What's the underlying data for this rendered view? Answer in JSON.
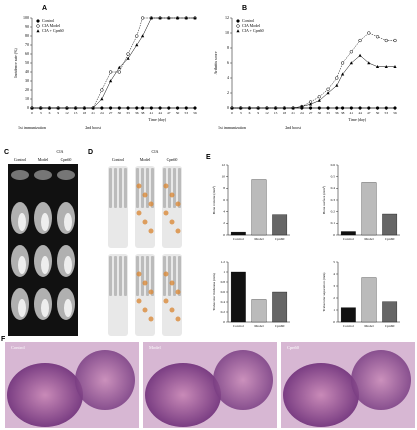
{
  "chart_data": [
    {
      "type": "line",
      "label": "A",
      "ylabel": "Incidence rate (%)",
      "xlabel": "Time (day)",
      "annotations": [
        "1st immunization",
        "2nd boost"
      ],
      "x": [
        0,
        3,
        6,
        9,
        12,
        15,
        18,
        21,
        24,
        27,
        30,
        33,
        36,
        38,
        41,
        44,
        47,
        50,
        53,
        56
      ],
      "xlim": [
        0,
        56
      ],
      "ylim": [
        0,
        100
      ],
      "yticks": [
        0,
        10,
        20,
        30,
        40,
        50,
        60,
        70,
        80,
        90,
        100
      ],
      "series": [
        {
          "name": "Control",
          "color": "#000000",
          "marker": "filled-circle",
          "values": [
            0,
            0,
            0,
            0,
            0,
            0,
            0,
            0,
            0,
            0,
            0,
            0,
            0,
            0,
            0,
            0,
            0,
            0,
            0,
            0
          ]
        },
        {
          "name": "CIA Model",
          "color": "#000000",
          "marker": "open-circle",
          "values": [
            0,
            0,
            0,
            0,
            0,
            0,
            0,
            0,
            20,
            40,
            40,
            60,
            80,
            100,
            100,
            100,
            100,
            100,
            100,
            100
          ]
        },
        {
          "name": "CIA + Cpn60",
          "color": "#000000",
          "marker": "triangle",
          "values": [
            0,
            0,
            0,
            0,
            0,
            0,
            0,
            0,
            10,
            30,
            45,
            55,
            70,
            80,
            100,
            100,
            100,
            100,
            100,
            100
          ]
        }
      ]
    },
    {
      "type": "line",
      "label": "B",
      "ylabel": "Arthritis score",
      "xlabel": "Time (day)",
      "annotations": [
        "1st immunization",
        "2nd boost"
      ],
      "x": [
        0,
        3,
        6,
        9,
        12,
        15,
        18,
        21,
        24,
        27,
        30,
        33,
        36,
        38,
        41,
        44,
        47,
        50,
        53,
        56
      ],
      "xlim": [
        0,
        56
      ],
      "ylim": [
        0,
        12
      ],
      "yticks": [
        0,
        2,
        4,
        6,
        8,
        10,
        12
      ],
      "series": [
        {
          "name": "Control",
          "color": "#000000",
          "marker": "filled-circle",
          "values": [
            0,
            0,
            0,
            0,
            0,
            0,
            0,
            0,
            0,
            0,
            0,
            0,
            0,
            0,
            0,
            0,
            0,
            0,
            0,
            0
          ]
        },
        {
          "name": "CIA Model",
          "color": "#000000",
          "marker": "open-circle",
          "values": [
            0,
            0,
            0,
            0,
            0,
            0,
            0,
            0,
            0.2,
            0.8,
            1.5,
            2.5,
            4,
            6,
            7.5,
            9,
            10,
            9.5,
            9,
            9
          ]
        },
        {
          "name": "CIA + Cpn60",
          "color": "#000000",
          "marker": "triangle",
          "values": [
            0,
            0,
            0,
            0,
            0,
            0,
            0,
            0,
            0.2,
            0.5,
            1,
            2,
            3,
            4.5,
            6,
            7,
            6,
            5.5,
            5.5,
            5.5
          ]
        }
      ]
    },
    {
      "type": "bar",
      "label": "E",
      "ylabel": "Bone volume (mm³)",
      "categories": [
        "Control",
        "Model",
        "Cpn60"
      ],
      "values": [
        0.5,
        9.5,
        3.5
      ],
      "colors": [
        "#111111",
        "#bbbbbb",
        "#666666"
      ],
      "ylim": [
        0,
        12
      ],
      "yticks": [
        0,
        2,
        4,
        6,
        8,
        10,
        12
      ]
    },
    {
      "type": "bar",
      "ylabel": "Bone surface (mm²)",
      "categories": [
        "Control",
        "Model",
        "Cpn60"
      ],
      "values": [
        0.03,
        0.45,
        0.18
      ],
      "colors": [
        "#111111",
        "#bbbbbb",
        "#666666"
      ],
      "ylim": [
        0,
        0.6
      ],
      "yticks": [
        0,
        0.1,
        0.2,
        0.3,
        0.4,
        0.5,
        0.6
      ]
    },
    {
      "type": "bar",
      "ylabel": "Trabecular thickness (mm)",
      "categories": [
        "Control",
        "Model",
        "Cpn60"
      ],
      "values": [
        1.0,
        0.45,
        0.6
      ],
      "colors": [
        "#111111",
        "#bbbbbb",
        "#666666"
      ],
      "ylim": [
        0,
        1.2
      ],
      "yticks": [
        0,
        0.2,
        0.4,
        0.6,
        0.8,
        1,
        1.2
      ]
    },
    {
      "type": "bar",
      "ylabel": "Trabecular separation (mm)",
      "categories": [
        "Control",
        "Model",
        "Cpn60"
      ],
      "values": [
        1.2,
        3.7,
        1.7
      ],
      "colors": [
        "#111111",
        "#bbbbbb",
        "#666666"
      ],
      "ylim": [
        0,
        5
      ],
      "yticks": [
        0,
        1,
        2,
        3,
        4,
        5
      ]
    }
  ],
  "images": {
    "C": {
      "label": "C",
      "group": "CIA",
      "columns": [
        "Control",
        "Model",
        "Cpn60"
      ]
    },
    "D": {
      "label": "D",
      "group": "CIA",
      "columns": [
        "Control",
        "Model",
        "Cpn60"
      ]
    },
    "F": {
      "label": "F",
      "columns": [
        "Control",
        "Model",
        "Cpn60"
      ]
    }
  }
}
